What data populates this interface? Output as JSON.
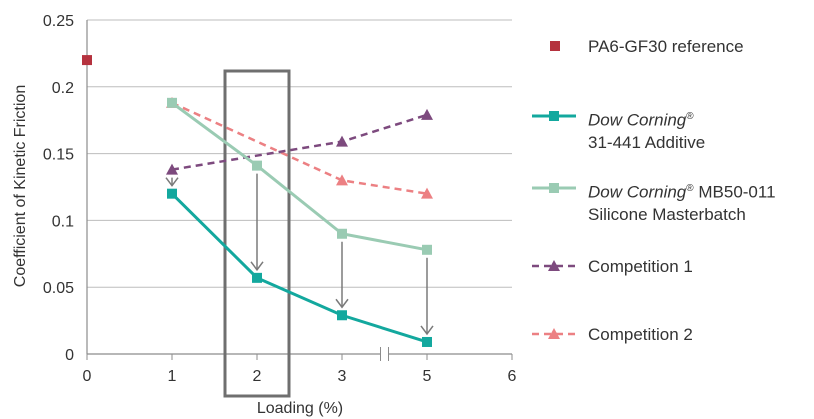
{
  "chart_data": {
    "type": "line",
    "xlabel": "Loading (%)",
    "ylabel": "Coefficient of Kinetic Friction",
    "xlim": [
      0,
      6
    ],
    "ylim": [
      0,
      0.25
    ],
    "x_ticks": [
      "0",
      "1",
      "2",
      "3",
      "5",
      "6"
    ],
    "y_ticks": [
      "0",
      "0.05",
      "0.1",
      "0.15",
      "0.2",
      "0.25"
    ],
    "axis_break": "between 3 and 5",
    "grid": "horizontal",
    "legend_position": "right",
    "highlight_box_at_x": "2",
    "reference": {
      "name": "PA6-GF30 reference",
      "x": "0",
      "y": 0.22,
      "color": "#b5323e",
      "marker": "square"
    },
    "series": [
      {
        "name_line1_italic": "Dow Corning",
        "name_line1_sup": "®",
        "name_line2": "31-441 Additive",
        "x": [
          "1",
          "2",
          "3",
          "5"
        ],
        "values": [
          0.12,
          0.057,
          0.029,
          0.009
        ],
        "color": "#13a89e",
        "dash": "solid",
        "marker": "square"
      },
      {
        "name_line1_italic": "Dow Corning",
        "name_line1_sup": "®",
        "name_line1_rest": " MB50-011",
        "name_line2": "Silicone Masterbatch",
        "x": [
          "1",
          "2",
          "3",
          "5"
        ],
        "values": [
          0.188,
          0.141,
          0.09,
          0.078
        ],
        "color": "#9acbb3",
        "dash": "solid",
        "marker": "square"
      },
      {
        "name": "Competition 1",
        "x": [
          "1",
          "3",
          "5"
        ],
        "values": [
          0.138,
          0.159,
          0.179
        ],
        "color": "#7d4a7e",
        "dash": "dashed",
        "marker": "triangle"
      },
      {
        "name": "Competition 2",
        "x": [
          "1",
          "3",
          "5"
        ],
        "values": [
          0.188,
          0.13,
          0.12
        ],
        "color": "#ec8083",
        "dash": "dashed",
        "marker": "triangle"
      }
    ],
    "arrows": [
      {
        "x": "1",
        "from": 0.138,
        "to": 0.12
      },
      {
        "x": "2",
        "from": 0.141,
        "to": 0.057
      },
      {
        "x": "3",
        "from": 0.09,
        "to": 0.029
      },
      {
        "x": "5",
        "from": 0.078,
        "to": 0.009
      }
    ]
  }
}
